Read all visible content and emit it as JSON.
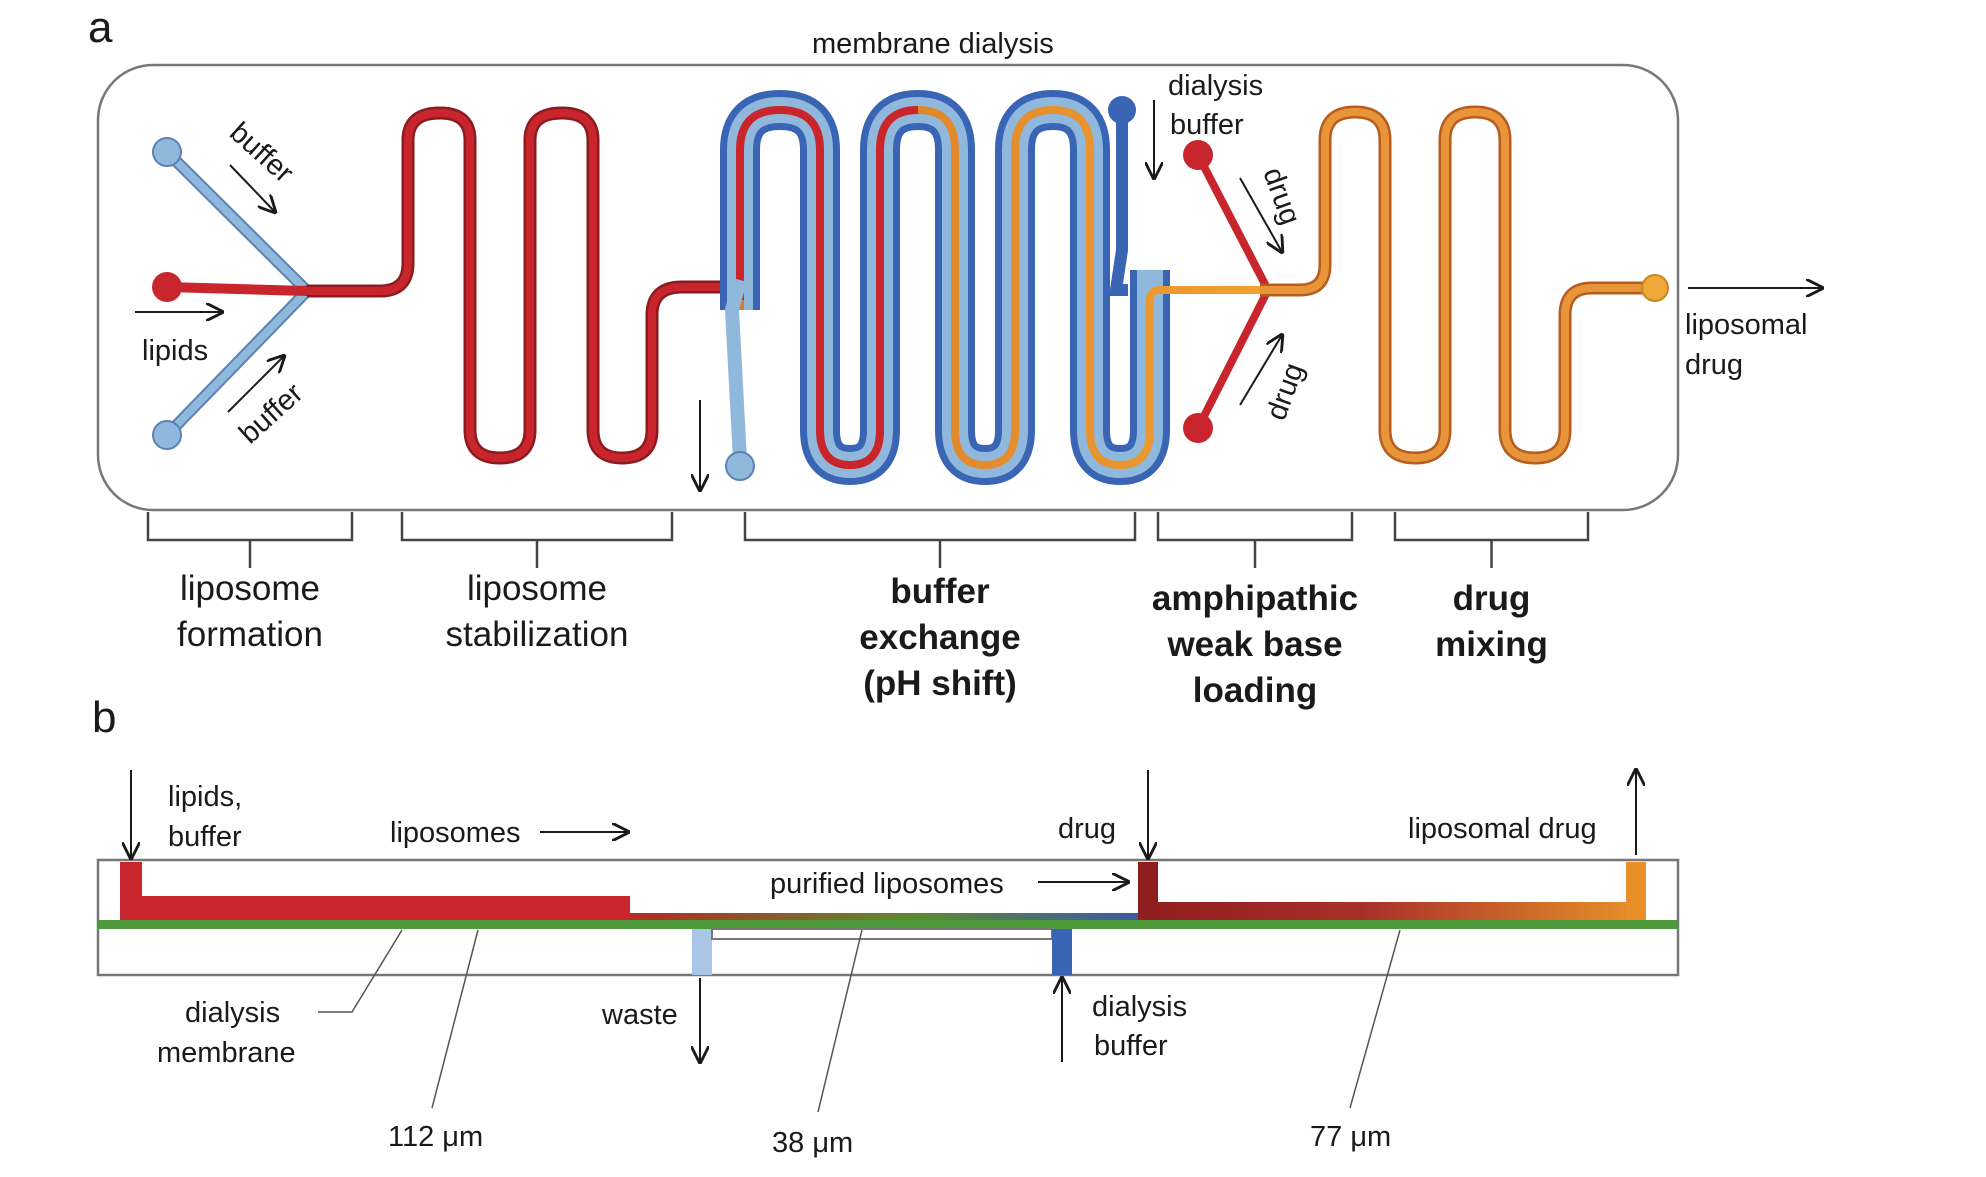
{
  "panels": {
    "a": "a",
    "b": "b"
  },
  "panel_a": {
    "membrane_dialysis": "membrane dialysis",
    "dialysis_buffer_1": "dialysis",
    "dialysis_buffer_2": "buffer",
    "buffer_top": "buffer",
    "buffer_bottom": "buffer",
    "lipids": "lipids",
    "drug_top": "drug",
    "drug_bottom": "drug",
    "liposomal_drug_1": "liposomal",
    "liposomal_drug_2": "drug"
  },
  "stages": [
    {
      "lines": [
        "liposome",
        "formation"
      ],
      "bold": false
    },
    {
      "lines": [
        "liposome",
        "stabilization"
      ],
      "bold": false
    },
    {
      "lines": [
        "buffer",
        "exchange",
        "(pH shift)"
      ],
      "bold": true
    },
    {
      "lines": [
        "amphipathic",
        "weak base",
        "loading"
      ],
      "bold": true
    },
    {
      "lines": [
        "drug",
        "mixing"
      ],
      "bold": true
    }
  ],
  "panel_b": {
    "lipids_buffer_1": "lipids,",
    "lipids_buffer_2": "buffer",
    "liposomes": "liposomes",
    "purified_liposomes": "purified liposomes",
    "drug": "drug",
    "liposomal_drug": "liposomal drug",
    "dialysis_membrane_1": "dialysis",
    "dialysis_membrane_2": "membrane",
    "waste": "waste",
    "dialysis_buffer_1": "dialysis",
    "dialysis_buffer_2": "buffer",
    "depth_112": "112 μm",
    "depth_38": "38 μm",
    "depth_77": "77 μm"
  },
  "colors": {
    "lipid_red": "#c8262c",
    "buffer_light_blue": "#8fb8dc",
    "dialysis_dark_blue": "#3a64b4",
    "drug_orange": "#e7902a",
    "membrane_green": "#4f9a3b",
    "chip_outline": "#777777"
  }
}
